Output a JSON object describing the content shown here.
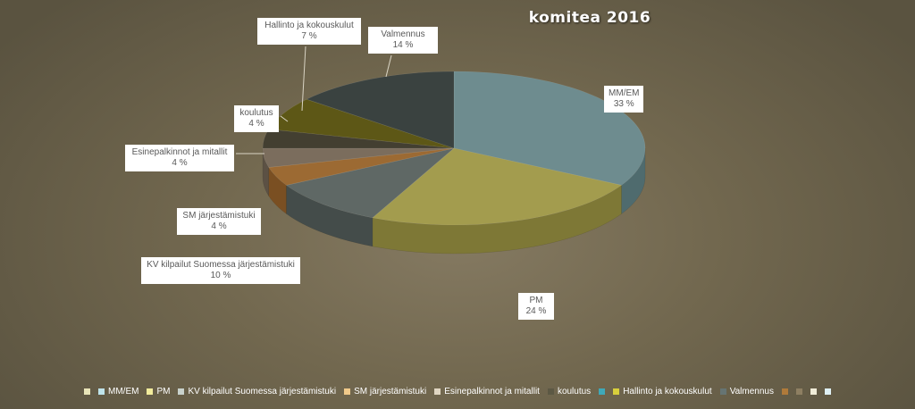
{
  "chart_data": {
    "type": "pie",
    "title": "komitea  2016",
    "slices": [
      {
        "name": "MM/EM",
        "value": 33,
        "label": "33 %",
        "color": "#6e8c8f",
        "side": "#4f6b6e"
      },
      {
        "name": "PM",
        "value": 24,
        "label": "24 %",
        "color": "#a39c4e",
        "side": "#7e7836"
      },
      {
        "name": "KV kilpailut Suomessa järjestämistuki",
        "value": 10,
        "label": "10 %",
        "color": "#5f6865",
        "side": "#444c4a"
      },
      {
        "name": "SM järjestämistuki",
        "value": 4,
        "label": "4 %",
        "color": "#9c6a33",
        "side": "#7a4f22"
      },
      {
        "name": "Esinepalkinnot ja mitallit",
        "value": 4,
        "label": "4 %",
        "color": "#7b6d5d",
        "side": "#5c5144"
      },
      {
        "name": "koulutus",
        "value": 4,
        "label": "4 %",
        "color": "#433f31",
        "side": "#2f2c22"
      },
      {
        "name": "Hallinto ja kokouskulut",
        "value": 7,
        "label": "7 %",
        "color": "#5d5716",
        "side": "#433f0d"
      },
      {
        "name": "Valmennus",
        "value": 14,
        "label": "14 %",
        "color": "#3a4240",
        "side": "#282e2d"
      }
    ],
    "legend_position": "bottom",
    "legend": [
      {
        "label": "",
        "color": "#e8e4b8"
      },
      {
        "label": "MM/EM",
        "color": "#bfe3ea"
      },
      {
        "label": "PM",
        "color": "#f2ec9c"
      },
      {
        "label": "KV kilpailut Suomessa järjestämistuki",
        "color": "#c9d2cc"
      },
      {
        "label": "SM järjestämistuki",
        "color": "#f0c98a"
      },
      {
        "label": "Esinepalkinnot ja mitallit",
        "color": "#e0d6c2"
      },
      {
        "label": "koulutus",
        "color": "#5c5844"
      },
      {
        "label": "",
        "color": "#3fa9b8"
      },
      {
        "label": "Hallinto ja kokouskulut",
        "color": "#d8cf3c"
      },
      {
        "label": "Valmennus",
        "color": "#667473"
      },
      {
        "label": "",
        "color": "#b07a3a"
      },
      {
        "label": "",
        "color": "#8e7f62"
      },
      {
        "label": "",
        "color": "#f0ecd8"
      },
      {
        "label": "",
        "color": "#dff0f4"
      }
    ]
  }
}
